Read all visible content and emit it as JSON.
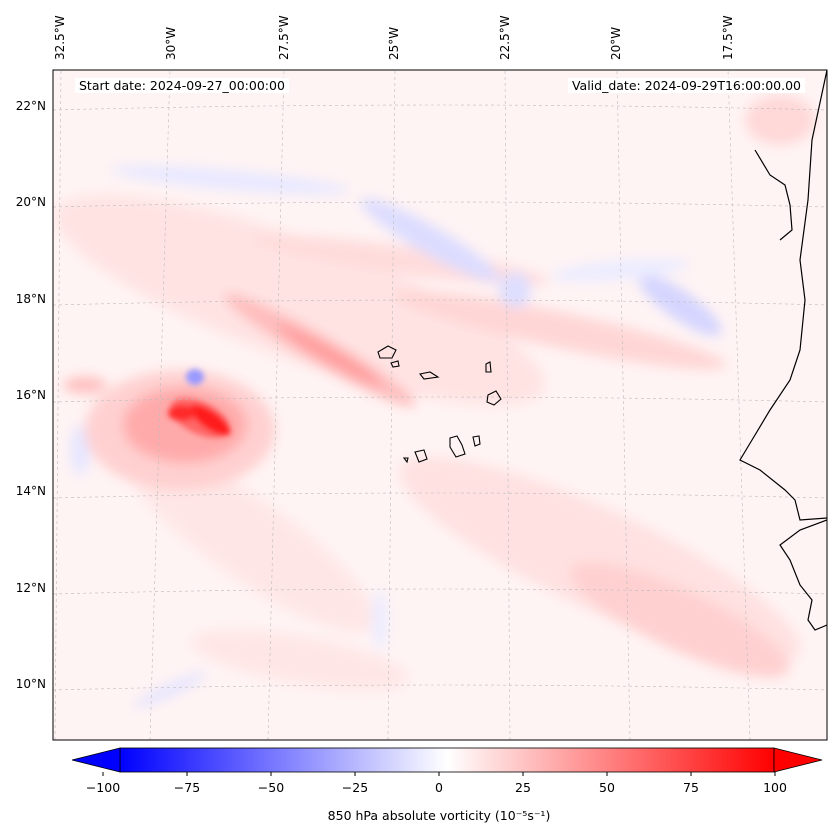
{
  "map": {
    "start_date_text": "Start date: 2024-09-27_00:00:00",
    "valid_date_text": "Valid_date: 2024-09-29T16:00:00.00",
    "lon_labels": [
      "32.5°W",
      "30°W",
      "27.5°W",
      "25°W",
      "22.5°W",
      "20°W",
      "17.5°W"
    ],
    "lat_labels": [
      "22°N",
      "20°N",
      "18°N",
      "16°N",
      "14°N",
      "12°N",
      "10°N"
    ],
    "gridlines": "on",
    "field": "850 hPa absolute vorticity",
    "feature": "vortex-west-of-cape-verde"
  },
  "colorbar": {
    "title": "850 hPa absolute vorticity (10⁻⁵s⁻¹)",
    "ticks": [
      "−100",
      "−75",
      "−50",
      "−25",
      "0",
      "25",
      "50",
      "75",
      "100"
    ],
    "range": [
      -100,
      100
    ],
    "colormap": "bwr",
    "color_low": "#0000ff",
    "color_mid": "#ffffff",
    "color_high": "#ff0000"
  }
}
